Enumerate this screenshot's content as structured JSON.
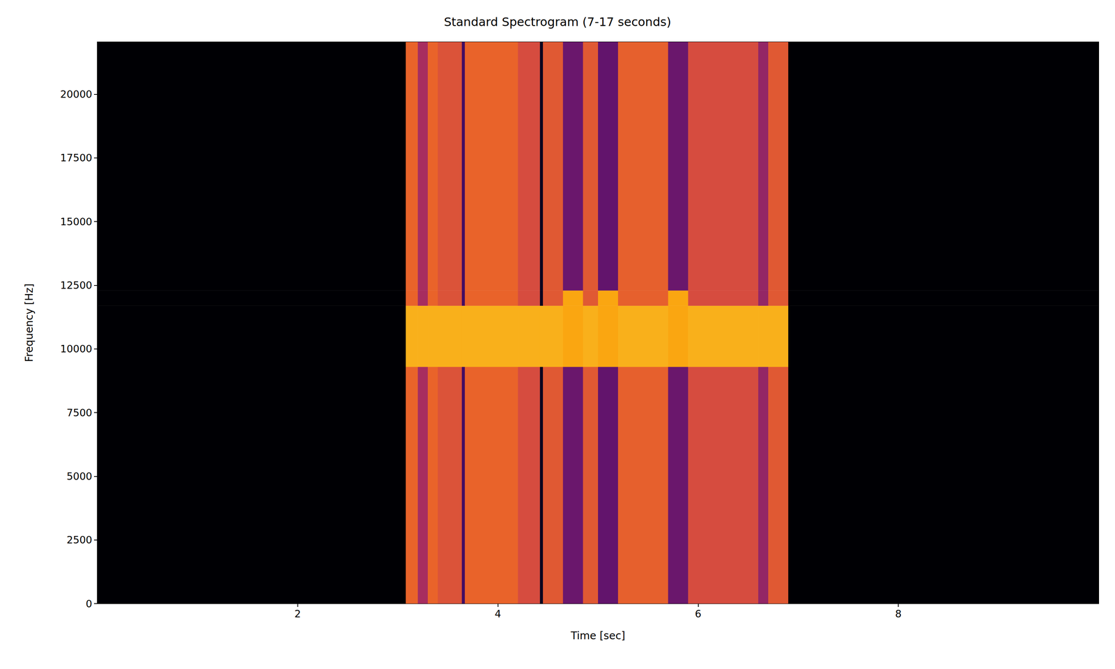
{
  "chart_data": {
    "type": "heatmap",
    "title": "Standard Spectrogram (7-17 seconds)",
    "x_label": "Time [sec]",
    "y_label": "Frequency [Hz]",
    "xlim": [
      0,
      10
    ],
    "ylim": [
      0,
      22050
    ],
    "xticks": [
      2,
      4,
      6,
      8
    ],
    "yticks": [
      0,
      2500,
      5000,
      7500,
      10000,
      12500,
      15000,
      17500,
      20000
    ],
    "grid": false,
    "x_edges": [
      0,
      3.08,
      3.2,
      3.3,
      3.4,
      3.64,
      3.67,
      4.2,
      4.42,
      4.45,
      4.65,
      4.85,
      5.0,
      5.2,
      5.7,
      5.9,
      6.6,
      6.7,
      6.9,
      10
    ],
    "y_edges": [
      0,
      9300,
      11700,
      12300,
      22050
    ],
    "cells": [
      [
        -100,
        -35,
        -55,
        -35,
        -40,
        -80,
        -35,
        -42,
        -95,
        -38,
        -70,
        -38,
        -72,
        -36,
        -70,
        -42,
        -60,
        -38,
        -100
      ],
      [
        -100,
        -18,
        -18,
        -18,
        -18,
        -18,
        -18,
        -18,
        -18,
        -18,
        -20,
        -18,
        -20,
        -18,
        -20,
        -18,
        -18,
        -18,
        -100
      ],
      [
        -100,
        -35,
        -55,
        -35,
        -40,
        -80,
        -35,
        -42,
        -95,
        -38,
        -20,
        -38,
        -20,
        -36,
        -20,
        -42,
        -60,
        -38,
        -100
      ],
      [
        -100,
        -35,
        -55,
        -35,
        -40,
        -80,
        -35,
        -42,
        -95,
        -38,
        -70,
        -38,
        -72,
        -36,
        -70,
        -42,
        -60,
        -38,
        -100
      ]
    ],
    "zlim": [
      -100,
      0
    ]
  }
}
